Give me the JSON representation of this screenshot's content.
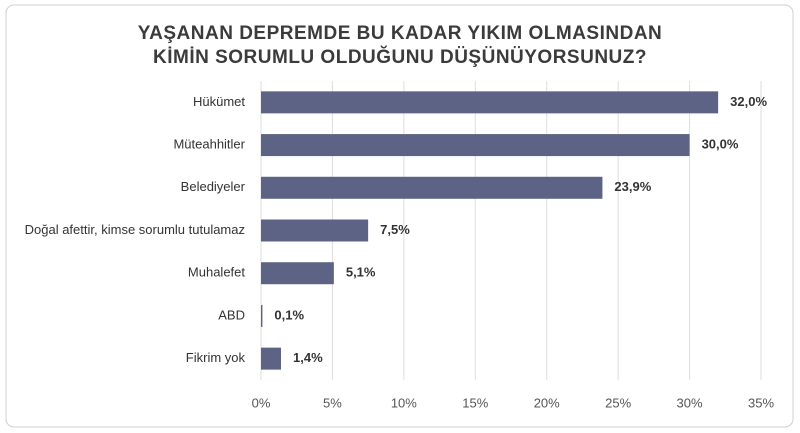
{
  "chart_data": {
    "type": "hbar",
    "title": [
      "YAŞANAN DEPREMDE BU KADAR YIKIM OLMASINDAN",
      "KİMİN SORUMLU OLDUĞUNU DÜŞÜNÜYORSUNUZ?"
    ],
    "categories": [
      "Hükümet",
      "Müteahhitler",
      "Belediyeler",
      "Doğal afettir, kimse sorumlu tutulamaz",
      "Muhalefet",
      "ABD",
      "Fikrim yok"
    ],
    "values": [
      32.0,
      30.0,
      23.9,
      7.5,
      5.1,
      0.1,
      1.4
    ],
    "value_labels": [
      "32,0%",
      "30,0%",
      "23,9%",
      "7,5%",
      "5,1%",
      "0,1%",
      "1,4%"
    ],
    "color": "#5d6384",
    "xlim": [
      0,
      35
    ],
    "xticks": [
      {
        "value": 0,
        "label": "0%"
      },
      {
        "value": 5,
        "label": "5%"
      },
      {
        "value": 10,
        "label": "10%"
      },
      {
        "value": 15,
        "label": "15%"
      },
      {
        "value": 20,
        "label": "20%"
      },
      {
        "value": 25,
        "label": "25%"
      },
      {
        "value": 30,
        "label": "30%"
      },
      {
        "value": 35,
        "label": "35%"
      }
    ],
    "grid": true
  }
}
